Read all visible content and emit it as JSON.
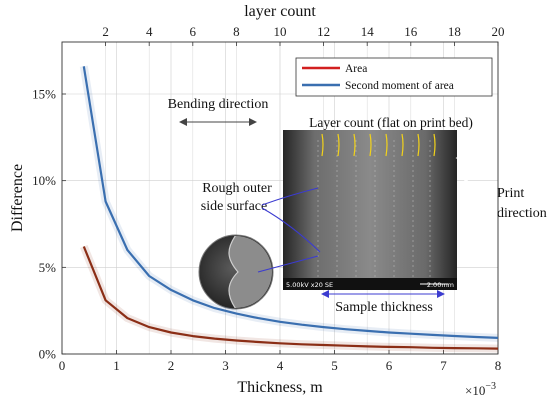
{
  "chart_data": {
    "type": "line",
    "xlabel": "Thickness, m",
    "x_exponent_label": "×10",
    "x_exponent_power": "−3",
    "ylabel": "Difference",
    "top_xlabel": "layer count",
    "xlim": [
      0,
      8
    ],
    "ylim": [
      0,
      18
    ],
    "x_ticks": [
      0,
      1,
      2,
      3,
      4,
      5,
      6,
      7,
      8
    ],
    "x_tick_labels": [
      "0",
      "1",
      "2",
      "3",
      "4",
      "5",
      "6",
      "7",
      "8"
    ],
    "y_ticks": [
      0,
      5,
      10,
      15
    ],
    "y_tick_labels": [
      "0%",
      "5%",
      "10%",
      "15%"
    ],
    "top_ticks": [
      2,
      4,
      6,
      8,
      10,
      12,
      14,
      16,
      18,
      20
    ],
    "top_tick_labels": [
      "2",
      "4",
      "6",
      "8",
      "10",
      "12",
      "14",
      "16",
      "18",
      "20"
    ],
    "grid": true,
    "legend_position": "top-right",
    "series": [
      {
        "name": "Area",
        "color": "#8B2E16",
        "x": [
          0.4,
          0.8,
          1.2,
          1.6,
          2.0,
          2.4,
          2.8,
          3.2,
          3.6,
          4.0,
          4.4,
          4.8,
          5.2,
          5.6,
          6.0,
          6.4,
          6.8,
          7.2,
          7.6,
          8.0
        ],
        "y": [
          6.2,
          3.1,
          2.07,
          1.55,
          1.24,
          1.03,
          0.89,
          0.78,
          0.69,
          0.62,
          0.56,
          0.52,
          0.48,
          0.44,
          0.41,
          0.39,
          0.36,
          0.34,
          0.33,
          0.31
        ]
      },
      {
        "name": "Second moment of area",
        "color": "#3A6FB0",
        "x": [
          0.4,
          0.8,
          1.2,
          1.6,
          2.0,
          2.4,
          2.8,
          3.2,
          3.6,
          4.0,
          4.4,
          4.8,
          5.2,
          5.6,
          6.0,
          6.4,
          6.8,
          7.2,
          7.6,
          8.0
        ],
        "y": [
          16.6,
          8.8,
          6.0,
          4.5,
          3.7,
          3.1,
          2.65,
          2.33,
          2.07,
          1.86,
          1.69,
          1.55,
          1.43,
          1.33,
          1.24,
          1.17,
          1.1,
          1.04,
          0.98,
          0.93
        ]
      }
    ],
    "annotations": {
      "bending_direction": "Bending direction",
      "rough_surface_line1": "Rough outer",
      "rough_surface_line2": "side surface",
      "layer_count_flat": "Layer count (flat on print bed)",
      "print_direction_line1": "Print",
      "print_direction_line2": "direction",
      "sample_thickness": "Sample thickness",
      "sem_caption_left": "5.00kV x20 SE",
      "sem_caption_right": "2.00mm"
    }
  }
}
